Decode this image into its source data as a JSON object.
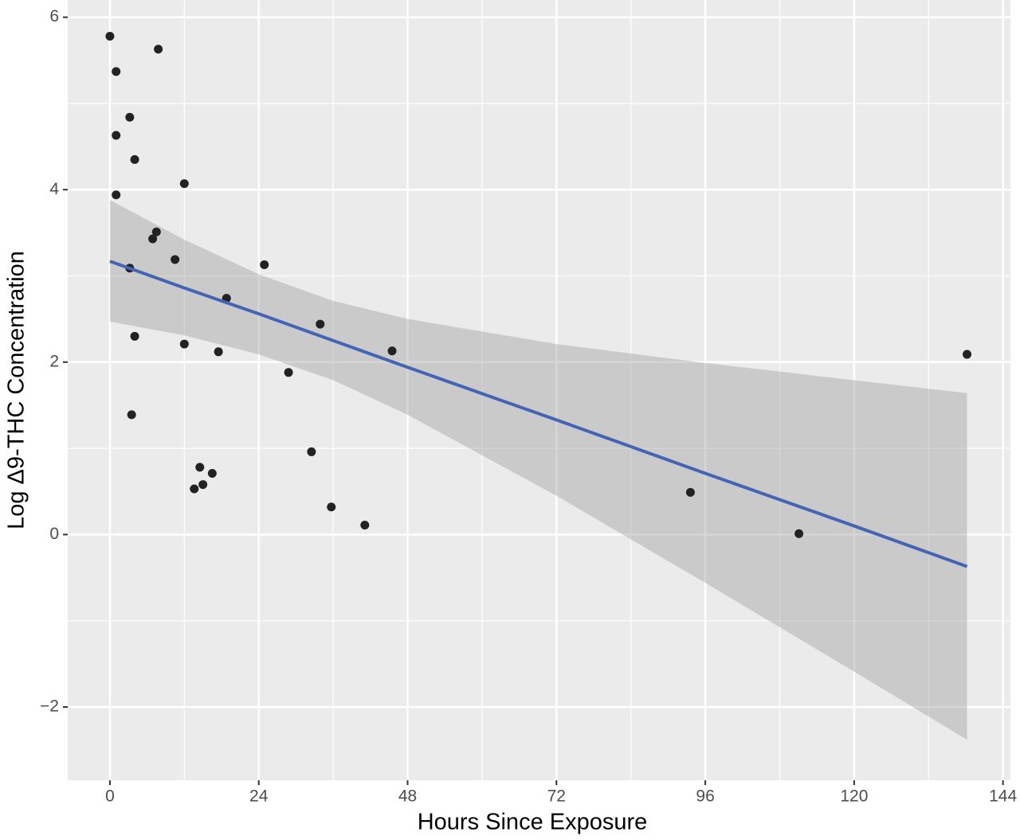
{
  "chart_data": {
    "type": "scatter",
    "x_label": "Hours Since Exposure",
    "y_label": "Log Δ9-THC Concentration",
    "xlim": [
      -6.8,
      145.2
    ],
    "ylim": [
      -2.85,
      6.2
    ],
    "xticks": [
      0,
      24,
      48,
      72,
      96,
      120,
      144
    ],
    "yticks": [
      {
        "value": -2,
        "label": "−2"
      },
      0,
      2,
      4,
      6
    ],
    "xminorticks": [
      12,
      36,
      60,
      84,
      108,
      132
    ],
    "yminorticks": [
      -1,
      1,
      3,
      5
    ],
    "grid": true,
    "series": [
      {
        "color": "#222222",
        "x": [
          0,
          1.0,
          7.8,
          1.0,
          3.2,
          4.0,
          12.0,
          1.0,
          7.5,
          6.9,
          10.5,
          3.2,
          24.9,
          18.8,
          33.9,
          4.0,
          12.0,
          17.5,
          45.5,
          28.8,
          3.5,
          32.5,
          14.5,
          16.5,
          15.0,
          13.6,
          35.7,
          41.1,
          93.6,
          111.1,
          138.2
        ],
        "values": [
          5.78,
          5.37,
          5.63,
          4.63,
          4.84,
          4.35,
          4.07,
          3.94,
          3.51,
          3.43,
          3.19,
          3.09,
          3.13,
          2.74,
          2.44,
          2.3,
          2.21,
          2.12,
          2.13,
          1.88,
          1.39,
          0.96,
          0.78,
          0.71,
          0.58,
          0.53,
          0.32,
          0.11,
          0.49,
          0.01,
          2.09
        ]
      }
    ],
    "fit": {
      "color": "#4464b4",
      "band_color": "#999999",
      "x": [
        0,
        12,
        24,
        36,
        48,
        72,
        96,
        120,
        138.2
      ],
      "values": [
        3.17,
        2.86,
        2.56,
        2.25,
        1.94,
        1.33,
        0.71,
        0.1,
        -0.37
      ],
      "upper": [
        3.88,
        3.42,
        3.02,
        2.71,
        2.5,
        2.21,
        1.99,
        1.79,
        1.64
      ],
      "lower": [
        2.47,
        2.31,
        2.09,
        1.79,
        1.39,
        0.45,
        -0.56,
        -1.59,
        -2.38
      ]
    }
  }
}
